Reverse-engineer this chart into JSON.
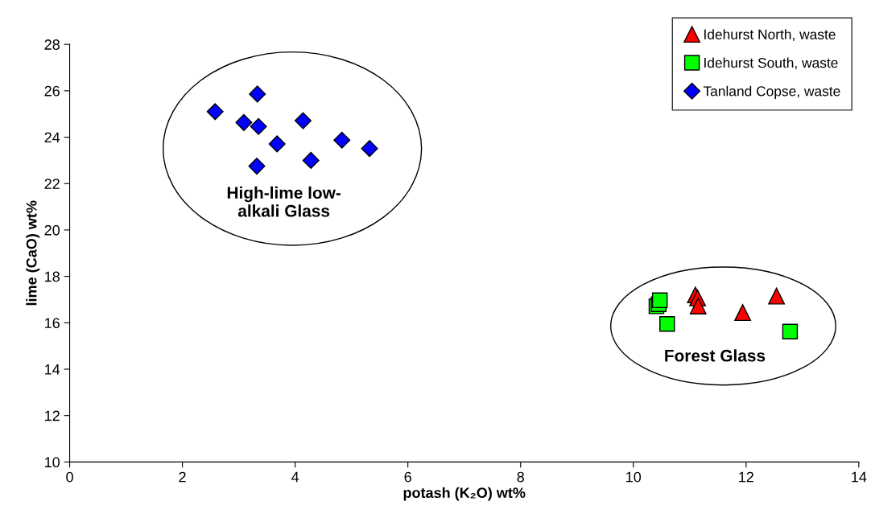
{
  "chart_data": {
    "type": "scatter",
    "xlabel": "potash (K₂O) wt%",
    "ylabel": "lime (CaO) wt%",
    "xlim": [
      0,
      14
    ],
    "xticks": [
      0,
      2,
      4,
      6,
      8,
      10,
      12,
      14
    ],
    "ylim": [
      10,
      28
    ],
    "yticks": [
      10,
      12,
      14,
      16,
      18,
      20,
      22,
      24,
      26,
      28
    ],
    "grid": false,
    "legend": "top right",
    "series": [
      {
        "name": "Idehurst North, waste",
        "color": "#ff0000",
        "marker": "triangle",
        "x": [
          11.1,
          11.14,
          11.15,
          11.94,
          12.54
        ],
        "values": [
          17.2,
          17.07,
          16.72,
          16.44,
          17.15
        ]
      },
      {
        "name": "Idehurst South, waste",
        "color": "#00ff00",
        "marker": "square",
        "x": [
          10.41,
          10.45,
          10.47,
          10.6,
          12.78
        ],
        "values": [
          16.71,
          16.8,
          16.97,
          15.95,
          15.62
        ]
      },
      {
        "name": "Tanland Copse, waste",
        "color": "#0000ff",
        "marker": "diamond",
        "x": [
          3.33,
          2.58,
          3.09,
          3.35,
          4.14,
          3.68,
          4.83,
          5.32,
          4.28,
          3.32
        ],
        "values": [
          25.86,
          25.1,
          24.63,
          24.46,
          24.71,
          23.71,
          23.87,
          23.51,
          23.0,
          22.75
        ]
      }
    ],
    "annotations": [
      "High-lime low-\nalkali Glass",
      "Forest Glass"
    ]
  }
}
